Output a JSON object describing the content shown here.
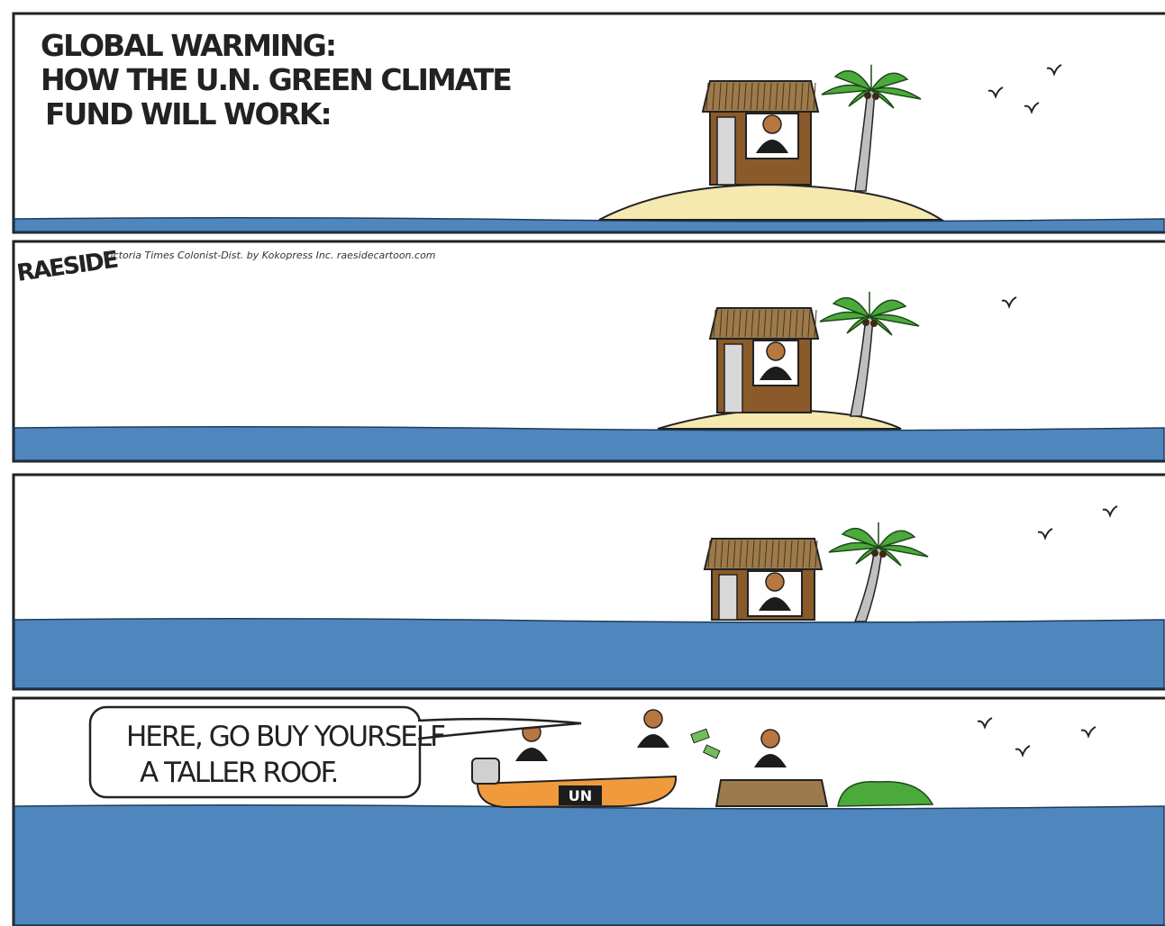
{
  "caption": [
    "GLOBAL WARMING:",
    "HOW THE U.N. GREEN CLIMATE",
    "FUND WILL WORK:"
  ],
  "signature": "RAESIDE",
  "credit": "Victoria Times Colonist-Dist. by Kokopress Inc. raesidecartoon.com",
  "speech": [
    "HERE, GO BUY YOURSELF",
    "A TALLER ROOF."
  ],
  "boat_label": "UN"
}
